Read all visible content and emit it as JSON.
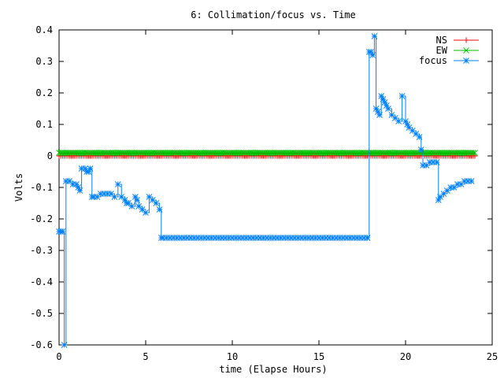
{
  "chart_data": {
    "type": "line",
    "title": "6: Collimation/focus vs. Time",
    "xlabel": "time (Elapse Hours)",
    "ylabel": "Volts",
    "xlim": [
      0,
      25
    ],
    "ylim": [
      -0.6,
      0.4
    ],
    "xticks": [
      0,
      5,
      10,
      15,
      20,
      25
    ],
    "yticks": [
      -0.6,
      -0.5,
      -0.4,
      -0.3,
      -0.2,
      -0.1,
      0,
      0.1,
      0.2,
      0.3,
      0.4
    ],
    "xtick_labels": [
      "0",
      "5",
      "10",
      "15",
      "20",
      "25"
    ],
    "ytick_labels": [
      "-0.6",
      "-0.5",
      "-0.4",
      "-0.3",
      "-0.2",
      "-0.1",
      "0",
      "0.1",
      "0.2",
      "0.3",
      "0.4"
    ],
    "legend_position": "top-right",
    "grid": false,
    "series": [
      {
        "name": "NS",
        "color": "#ff0000",
        "marker": "plus",
        "x": [
          0,
          24
        ],
        "y": [
          0.0,
          0.0
        ]
      },
      {
        "name": "EW",
        "color": "#00c000",
        "marker": "cross",
        "x": [
          0,
          24
        ],
        "y": [
          0.01,
          0.01
        ]
      },
      {
        "name": "focus",
        "color": "#0080ff",
        "marker": "star",
        "x": [
          0,
          0.1,
          0.2,
          0.3,
          0.4,
          0.6,
          0.8,
          1.0,
          1.1,
          1.2,
          1.3,
          1.5,
          1.6,
          1.7,
          1.8,
          1.9,
          2.0,
          2.2,
          2.4,
          2.6,
          2.8,
          3.0,
          3.2,
          3.4,
          3.6,
          3.8,
          3.9,
          4.0,
          4.2,
          4.4,
          4.5,
          4.6,
          4.8,
          5.0,
          5.2,
          5.4,
          5.6,
          5.8,
          5.9,
          6.0,
          17.8,
          17.9,
          18.0,
          18.1,
          18.2,
          18.3,
          18.4,
          18.5,
          18.6,
          18.7,
          18.8,
          18.9,
          19.0,
          19.2,
          19.4,
          19.6,
          19.8,
          20.0,
          20.1,
          20.2,
          20.4,
          20.6,
          20.8,
          20.9,
          21.0,
          21.2,
          21.4,
          21.6,
          21.8,
          21.9,
          22.0,
          22.2,
          22.4,
          22.6,
          22.8,
          23.0,
          23.2,
          23.4,
          23.6,
          23.8
        ],
        "y": [
          -0.24,
          -0.24,
          -0.24,
          -0.6,
          -0.08,
          -0.08,
          -0.09,
          -0.09,
          -0.1,
          -0.11,
          -0.04,
          -0.04,
          -0.05,
          -0.05,
          -0.04,
          -0.13,
          -0.13,
          -0.13,
          -0.12,
          -0.12,
          -0.12,
          -0.12,
          -0.13,
          -0.09,
          -0.13,
          -0.14,
          -0.15,
          -0.15,
          -0.16,
          -0.13,
          -0.14,
          -0.16,
          -0.17,
          -0.18,
          -0.13,
          -0.14,
          -0.15,
          -0.17,
          -0.26,
          -0.26,
          -0.26,
          0.33,
          0.33,
          0.32,
          0.38,
          0.15,
          0.14,
          0.13,
          0.19,
          0.18,
          0.17,
          0.16,
          0.15,
          0.13,
          0.12,
          0.11,
          0.19,
          0.11,
          0.1,
          0.09,
          0.08,
          0.07,
          0.06,
          0.02,
          -0.03,
          -0.03,
          -0.02,
          -0.02,
          -0.02,
          -0.14,
          -0.13,
          -0.12,
          -0.11,
          -0.1,
          -0.1,
          -0.09,
          -0.09,
          -0.08,
          -0.08,
          -0.08
        ]
      }
    ]
  }
}
